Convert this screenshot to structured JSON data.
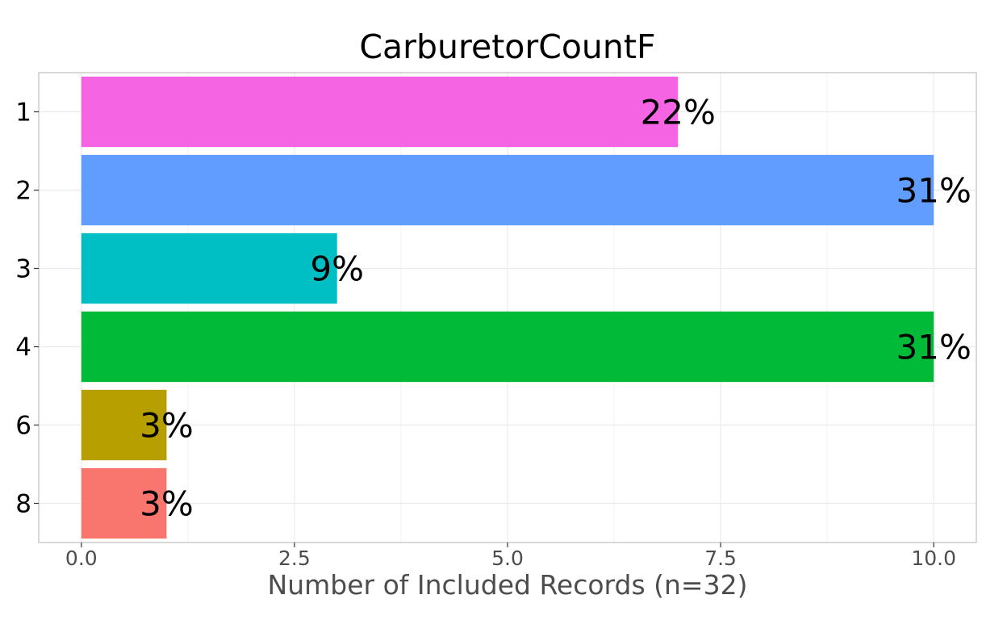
{
  "chart_data": {
    "type": "bar",
    "orientation": "horizontal",
    "title": "CarburetorCountF",
    "xlabel": "Number of Included Records (n=32)",
    "ylabel": "",
    "categories": [
      "1",
      "2",
      "3",
      "4",
      "6",
      "8"
    ],
    "values": [
      7,
      10,
      3,
      10,
      1,
      1
    ],
    "data_labels": [
      "22%",
      "31%",
      "9%",
      "31%",
      "3%",
      "3%"
    ],
    "bar_colors": [
      "#F564E3",
      "#619CFF",
      "#00BFC4",
      "#00BA38",
      "#B79F00",
      "#F8766D"
    ],
    "xlim": [
      -0.5,
      10.5
    ],
    "x_ticks": [
      0.0,
      2.5,
      5.0,
      7.5,
      10.0
    ],
    "x_tick_labels": [
      "0.0",
      "2.5",
      "5.0",
      "7.5",
      "10.0"
    ],
    "grid": true,
    "legend": "none"
  }
}
